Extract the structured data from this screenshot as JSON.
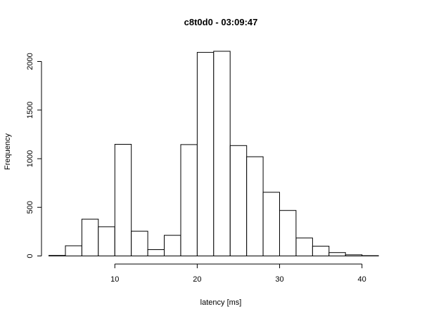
{
  "chart_data": {
    "type": "bar",
    "title": "c8t0d0 - 03:09:47",
    "xlabel": "latency [ms]",
    "ylabel": "Frequency",
    "bin_width": 2,
    "bins": [
      {
        "start": 2,
        "end": 4,
        "count": 5
      },
      {
        "start": 4,
        "end": 6,
        "count": 105
      },
      {
        "start": 6,
        "end": 8,
        "count": 378
      },
      {
        "start": 8,
        "end": 10,
        "count": 300
      },
      {
        "start": 10,
        "end": 12,
        "count": 1148
      },
      {
        "start": 12,
        "end": 14,
        "count": 255
      },
      {
        "start": 14,
        "end": 16,
        "count": 65
      },
      {
        "start": 16,
        "end": 18,
        "count": 212
      },
      {
        "start": 18,
        "end": 20,
        "count": 1145
      },
      {
        "start": 20,
        "end": 22,
        "count": 2093
      },
      {
        "start": 22,
        "end": 24,
        "count": 2105
      },
      {
        "start": 24,
        "end": 26,
        "count": 1135
      },
      {
        "start": 26,
        "end": 28,
        "count": 1020
      },
      {
        "start": 28,
        "end": 30,
        "count": 655
      },
      {
        "start": 30,
        "end": 32,
        "count": 468
      },
      {
        "start": 32,
        "end": 34,
        "count": 185
      },
      {
        "start": 34,
        "end": 36,
        "count": 100
      },
      {
        "start": 36,
        "end": 38,
        "count": 35
      },
      {
        "start": 38,
        "end": 40,
        "count": 12
      },
      {
        "start": 40,
        "end": 42,
        "count": 3
      }
    ],
    "x_ticks": [
      10,
      20,
      30,
      40
    ],
    "y_ticks": [
      0,
      500,
      1000,
      1500,
      2000
    ],
    "xlim": [
      1.1,
      43.1
    ],
    "ylim": [
      0,
      2400
    ],
    "grid": false,
    "legend": "none"
  }
}
